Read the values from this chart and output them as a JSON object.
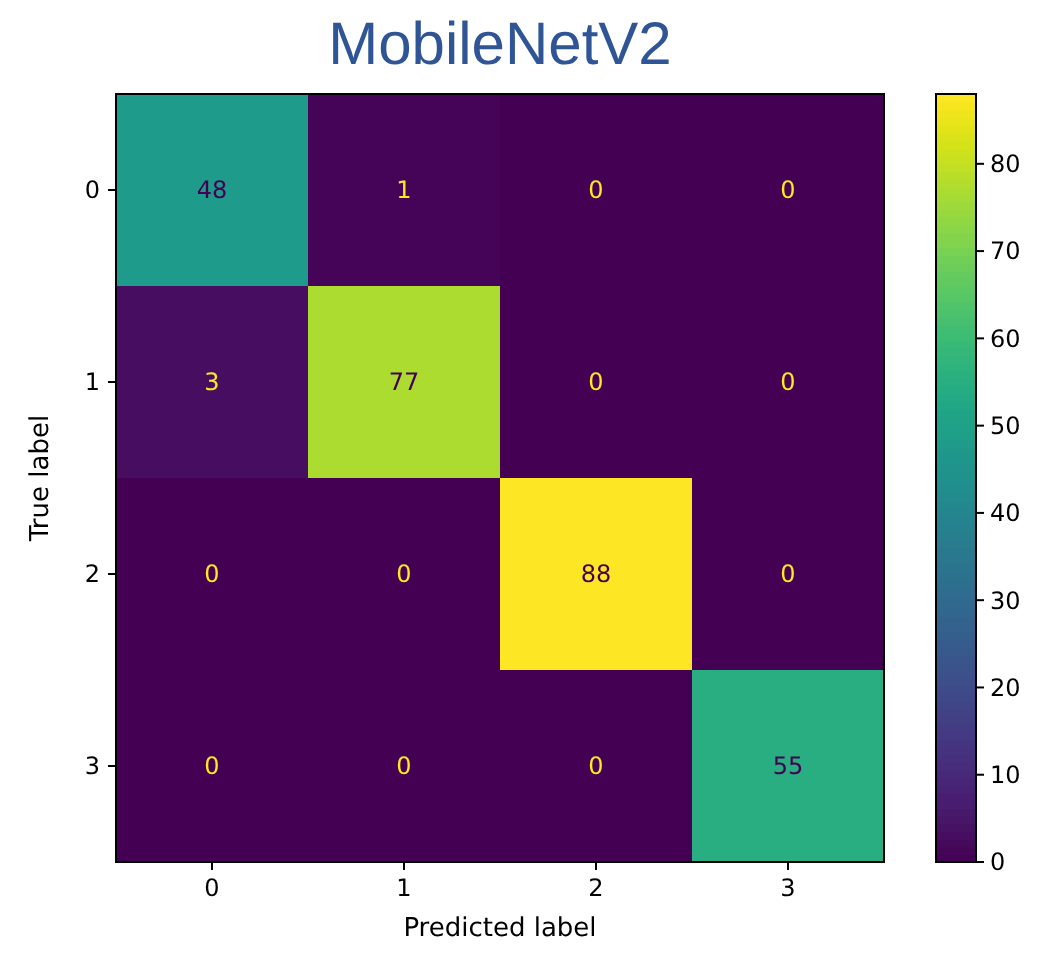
{
  "chart_data": {
    "type": "heatmap",
    "title": "MobileNetV2",
    "xlabel": "Predicted label",
    "ylabel": "True label",
    "categories": [
      "0",
      "1",
      "2",
      "3"
    ],
    "y_categories": [
      "0",
      "1",
      "2",
      "3"
    ],
    "cells": [
      [
        48,
        1,
        0,
        0
      ],
      [
        3,
        77,
        0,
        0
      ],
      [
        0,
        0,
        88,
        0
      ],
      [
        0,
        0,
        0,
        55
      ]
    ],
    "clim": [
      0,
      88
    ],
    "cticks": [
      0,
      10,
      20,
      30,
      40,
      50,
      60,
      70,
      80
    ],
    "data_labels": true
  }
}
